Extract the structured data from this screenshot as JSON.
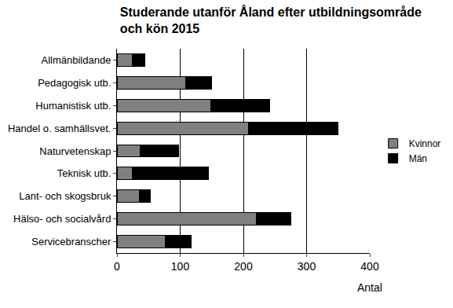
{
  "chart_data": {
    "type": "bar",
    "title": "Studerande utanför Åland efter utbildningsområde\noch kön 2015",
    "x_label": "Antal",
    "orientation": "horizontal",
    "stacked": true,
    "grid": true,
    "legend": "right",
    "categories": [
      "Allmänbildande",
      "Pedagogisk utb.",
      "Humanistisk utb.",
      "Handel o. samhällsvet.",
      "Naturvetenskap",
      "Teknisk utb.",
      "Lant- och skogsbruk",
      "Hälso- och socialvård",
      "Servicebranscher"
    ],
    "series": [
      {
        "name": "Kvinnor",
        "color": "#808080",
        "values": [
          24,
          109,
          148,
          208,
          37,
          24,
          35,
          220,
          77
        ]
      },
      {
        "name": "Män",
        "color": "#000000",
        "values": [
          20,
          41,
          93,
          142,
          60,
          121,
          18,
          55,
          41
        ]
      }
    ],
    "xlim": [
      0,
      400
    ],
    "xticks": [
      0,
      100,
      200,
      300,
      400
    ]
  }
}
